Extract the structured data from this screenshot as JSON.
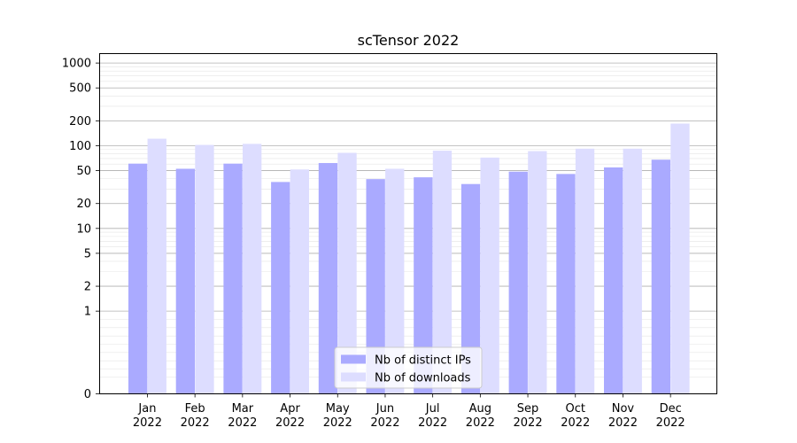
{
  "chart_data": {
    "type": "bar",
    "title": "scTensor 2022",
    "xlabel": "",
    "ylabel": "",
    "yscale": "symlog",
    "ylim": [
      0,
      1300
    ],
    "yticks": [
      0,
      1,
      2,
      5,
      10,
      20,
      50,
      100,
      200,
      500,
      1000
    ],
    "ytick_labels": [
      "0",
      "1",
      "2",
      "5",
      "10",
      "20",
      "50",
      "100",
      "200",
      "500",
      "1000"
    ],
    "categories": [
      "Jan\n2022",
      "Feb\n2022",
      "Mar\n2022",
      "Apr\n2022",
      "May\n2022",
      "Jun\n2022",
      "Jul\n2022",
      "Aug\n2022",
      "Sep\n2022",
      "Oct\n2022",
      "Nov\n2022",
      "Dec\n2022"
    ],
    "category_lines": [
      [
        "Jan",
        "2022"
      ],
      [
        "Feb",
        "2022"
      ],
      [
        "Mar",
        "2022"
      ],
      [
        "Apr",
        "2022"
      ],
      [
        "May",
        "2022"
      ],
      [
        "Jun",
        "2022"
      ],
      [
        "Jul",
        "2022"
      ],
      [
        "Aug",
        "2022"
      ],
      [
        "Sep",
        "2022"
      ],
      [
        "Oct",
        "2022"
      ],
      [
        "Nov",
        "2022"
      ],
      [
        "Dec",
        "2022"
      ]
    ],
    "series": [
      {
        "name": "Nb of distinct IPs",
        "color": "#aaaaff",
        "values": [
          60,
          52,
          60,
          36,
          61,
          39,
          41,
          34,
          48,
          45,
          54,
          67
        ]
      },
      {
        "name": "Nb of downloads",
        "color": "#ddddff",
        "values": [
          120,
          101,
          104,
          51,
          81,
          52,
          86,
          71,
          85,
          91,
          91,
          183
        ]
      }
    ],
    "grid": true,
    "legend": "lower center"
  }
}
